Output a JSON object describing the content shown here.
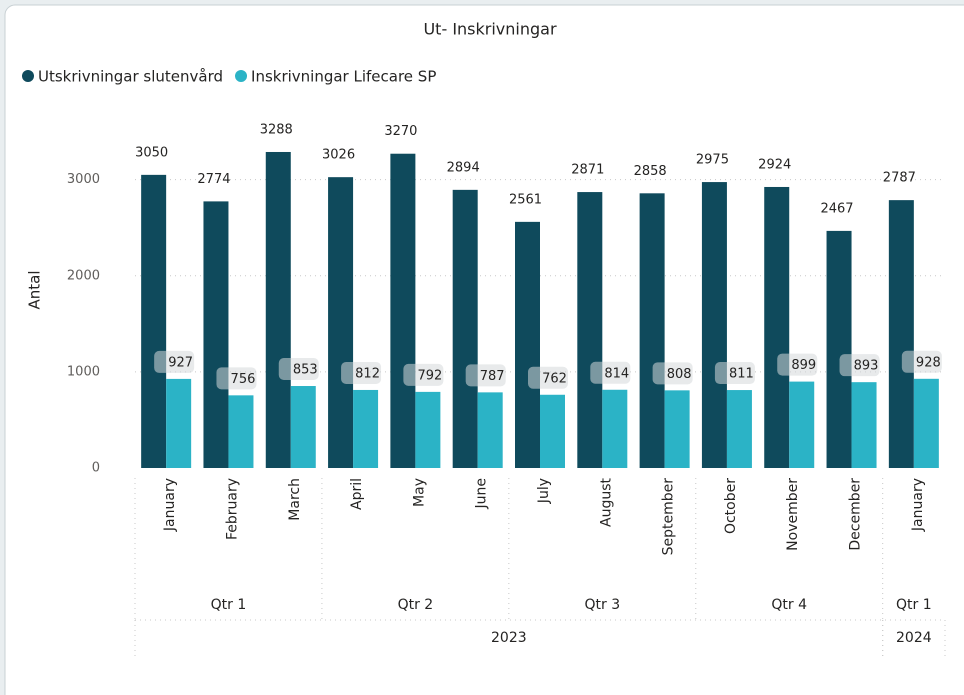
{
  "chart_data": {
    "type": "bar",
    "title": "Ut- Inskrivningar",
    "y_label": "Antal",
    "years": [
      {
        "label": "2023",
        "quarters": [
          {
            "label": "Qtr 1",
            "categories": [
              "January",
              "February",
              "March"
            ]
          },
          {
            "label": "Qtr 2",
            "categories": [
              "April",
              "May",
              "June"
            ]
          },
          {
            "label": "Qtr 3",
            "categories": [
              "July",
              "August",
              "September"
            ]
          },
          {
            "label": "Qtr 4",
            "categories": [
              "October",
              "November",
              "December"
            ]
          }
        ]
      },
      {
        "label": "2024",
        "quarters": [
          {
            "label": "Qtr 1",
            "categories": [
              "January"
            ]
          }
        ]
      }
    ],
    "series": [
      {
        "name": "Utskrivningar slutenvård",
        "color": "#0f4a5c",
        "values": [
          3050,
          2774,
          3288,
          3026,
          3270,
          2894,
          2561,
          2871,
          2858,
          2975,
          2924,
          2467,
          2787
        ]
      },
      {
        "name": "Inskrivningar Lifecare SP",
        "color": "#2bb3c6",
        "values": [
          927,
          756,
          853,
          812,
          792,
          787,
          762,
          814,
          808,
          811,
          899,
          893,
          928
        ]
      }
    ],
    "ylim": [
      0,
      3600
    ],
    "yticks": [
      0,
      1000,
      2000,
      3000
    ],
    "grid": true,
    "legend": "top-left"
  }
}
